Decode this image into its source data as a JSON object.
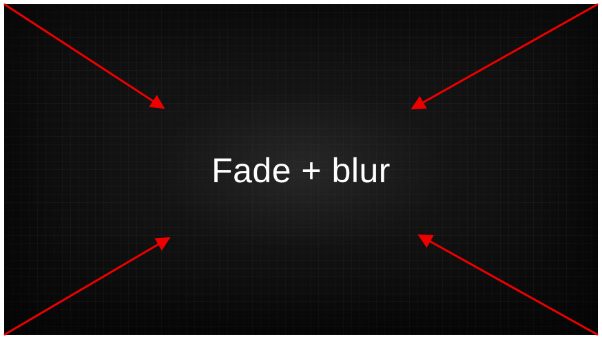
{
  "slide": {
    "title": "Fade + blur"
  },
  "colors": {
    "background": "#0f0f0f",
    "title_text": "#ffffff",
    "arrow": "#ee0000"
  },
  "icons": [
    "arrow-top-left-icon",
    "arrow-top-right-icon",
    "arrow-bottom-left-icon",
    "arrow-bottom-right-icon"
  ]
}
